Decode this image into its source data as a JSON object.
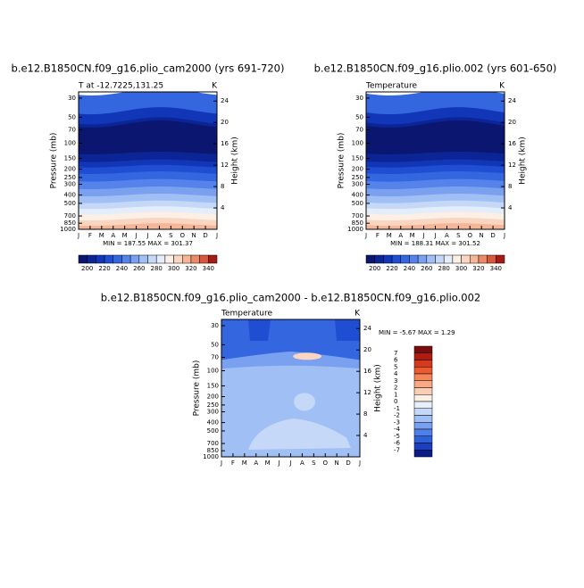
{
  "months": [
    "J",
    "F",
    "M",
    "A",
    "M",
    "J",
    "J",
    "A",
    "S",
    "O",
    "N",
    "D",
    "J"
  ],
  "pressure_ticks": [
    "30",
    "50",
    "70",
    "100",
    "150",
    "200",
    "250",
    "300",
    "400",
    "500",
    "700",
    "850",
    "1000"
  ],
  "height_ticks": [
    "24",
    "20",
    "16",
    "12",
    "8",
    "4"
  ],
  "y_label": "Pressure (mb)",
  "y2_label": "Height (km)",
  "colorbar_labels": [
    "200",
    "220",
    "240",
    "260",
    "280",
    "300",
    "320",
    "340"
  ],
  "diff_colorbar_labels": [
    "7",
    "6",
    "5",
    "4",
    "3",
    "2",
    "1",
    "0",
    "-1",
    "-2",
    "-3",
    "-4",
    "-5",
    "-6",
    "-7"
  ],
  "panels": [
    {
      "title": "b.e12.B1850CN.f09_g16.plio_cam2000 (yrs 691-720)",
      "left_label": "T at -12.7225,131.25",
      "right_label": "K",
      "stats": "MIN = 187.55 MAX = 301.37"
    },
    {
      "title": "b.e12.B1850CN.f09_g16.plio.002 (yrs 601-650)",
      "left_label": "Temperature",
      "right_label": "K",
      "stats": "MIN = 188.31 MAX = 301.52"
    },
    {
      "title": "b.e12.B1850CN.f09_g16.plio_cam2000 - b.e12.B1850CN.f09_g16.plio.002",
      "left_label": "Temperature",
      "right_label": "K",
      "stats": "MIN =  -5.67 MAX =   1.29"
    }
  ]
}
